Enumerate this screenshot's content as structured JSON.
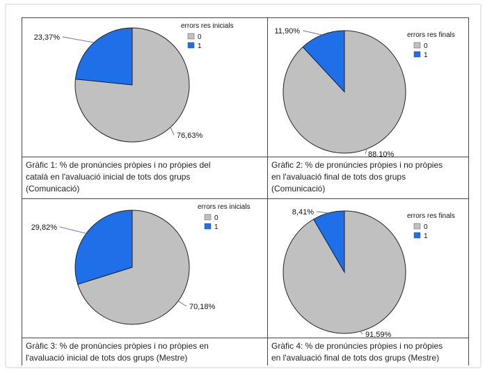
{
  "chart_data": [
    {
      "type": "pie",
      "legend_title": "errors res inicials",
      "categories": [
        "0",
        "1"
      ],
      "values": [
        76.63,
        23.37
      ],
      "data_labels": [
        "76,63%",
        "23,37%"
      ],
      "colors": [
        "#c0c0c0",
        "#1f6fe8"
      ],
      "caption": "Gràfic 1: % de pronúncies pròpies i no pròpies del català en l'avaluació inicial de tots dos grups (Comunicació)",
      "caption_lines": [
        "Gràfic 1: % de pronúncies pròpies i no pròpies del",
        "català en l'avaluació inicial de tots dos grups",
        "(Comunicació)"
      ],
      "legend": "top-right"
    },
    {
      "type": "pie",
      "legend_title": "errors res finals",
      "categories": [
        "0",
        "1"
      ],
      "values": [
        88.1,
        11.9
      ],
      "data_labels": [
        "88,10%",
        "11,90%"
      ],
      "colors": [
        "#c0c0c0",
        "#1f6fe8"
      ],
      "caption": "Gràfic 2: % de pronúncies pròpies i no pròpies en l'avaluació final de tots dos grups (Comunicació)",
      "caption_lines": [
        "Gràfic 2: % de pronúncies pròpies i no pròpies",
        "en l'avaluació final de tots dos grups",
        "(Comunicació)"
      ],
      "legend": "top-right"
    },
    {
      "type": "pie",
      "legend_title": "errors res inicials",
      "categories": [
        "0",
        "1"
      ],
      "values": [
        70.18,
        29.82
      ],
      "data_labels": [
        "70,18%",
        "29,82%"
      ],
      "colors": [
        "#c0c0c0",
        "#1f6fe8"
      ],
      "caption": "Gràfic 3: % de pronúncies pròpies i no pròpies en l'avaluació inicial de tots dos grups (Mestre)",
      "caption_lines": [
        "Gràfic 3: % de pronúncies pròpies i no pròpies en",
        "l'avaluació inicial de tots dos grups (Mestre)"
      ],
      "legend": "top-right"
    },
    {
      "type": "pie",
      "legend_title": "errors res finals",
      "categories": [
        "0",
        "1"
      ],
      "values": [
        91.59,
        8.41
      ],
      "data_labels": [
        "91,59%",
        "8,41%"
      ],
      "colors": [
        "#c0c0c0",
        "#1f6fe8"
      ],
      "caption": "Gràfic 4: % de pronúncies pròpies i no pròpies en l'avaluació final de tots dos grups (Mestre)",
      "caption_lines": [
        "Gràfic 4: % de pronúncies pròpies i no pròpies",
        "en l'avaluació final de tots dos grups (Mestre)"
      ],
      "legend": "top-right"
    }
  ]
}
